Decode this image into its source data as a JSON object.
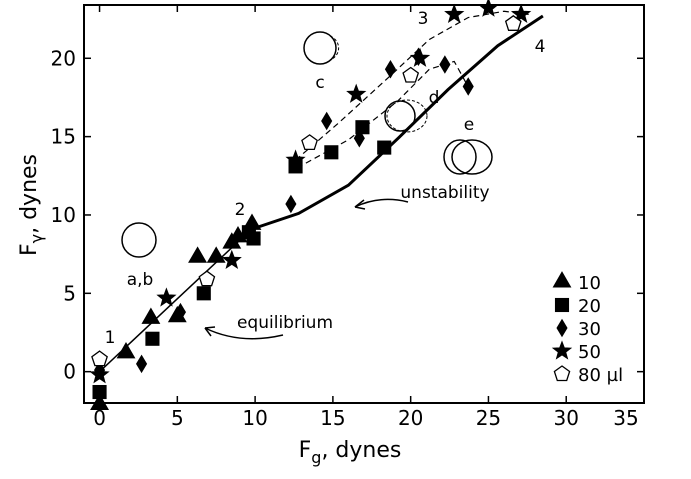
{
  "chart_data": {
    "type": "scatter",
    "x_label": "F",
    "x_label_sub": "g",
    "x_label_rest": ", dynes",
    "y_label": "F",
    "y_label_sub": "γ",
    "y_label_rest": ", dynes",
    "xlim": [
      -1,
      35
    ],
    "ylim": [
      -2,
      23.4
    ],
    "xticks": [
      0,
      5,
      10,
      15,
      20,
      25,
      30,
      35
    ],
    "yticks": [
      0,
      5,
      10,
      15,
      20
    ],
    "legend": "lower right",
    "series": [
      {
        "name": "10",
        "marker": "triangle",
        "color": "#000000",
        "filled": true,
        "x": [
          0,
          1.7,
          3.3,
          5.0,
          6.3,
          7.5,
          8.5,
          9.8,
          8.9
        ],
        "values": [
          -2.1,
          1.2,
          3.4,
          3.5,
          7.3,
          7.3,
          8.2,
          9.4,
          8.6
        ]
      },
      {
        "name": "20",
        "marker": "square",
        "color": "#000000",
        "filled": true,
        "x": [
          0,
          3.4,
          6.7,
          9.9,
          9.6,
          12.6,
          14.9,
          16.9,
          18.3
        ],
        "values": [
          -1.3,
          2.1,
          5.0,
          8.5,
          8.9,
          13.1,
          14.0,
          15.6,
          14.3
        ]
      },
      {
        "name": "30",
        "marker": "diamond",
        "color": "#000000",
        "filled": true,
        "x": [
          0,
          2.7,
          5.2,
          12.3,
          14.6,
          16.7,
          18.7,
          20.5,
          22.2,
          23.7
        ],
        "values": [
          0.1,
          0.5,
          3.8,
          10.7,
          16.0,
          14.9,
          19.3,
          20.1,
          19.6,
          18.2
        ]
      },
      {
        "name": "50",
        "marker": "star",
        "color": "#000000",
        "filled": true,
        "x": [
          0,
          4.3,
          8.5,
          12.6,
          16.5,
          20.6,
          22.8,
          25.0,
          27.1
        ],
        "values": [
          -0.2,
          4.7,
          7.1,
          13.5,
          17.7,
          20.0,
          22.8,
          23.2,
          22.8
        ]
      },
      {
        "name": "80 µl",
        "marker": "pentagon",
        "color": "#000000",
        "filled": false,
        "x": [
          0,
          6.9,
          13.5,
          20.0,
          26.6
        ],
        "values": [
          0.8,
          5.9,
          14.6,
          18.9,
          22.2
        ]
      }
    ],
    "curves": [
      {
        "x": [
          0,
          10.1
        ],
        "y": [
          0,
          9.4
        ],
        "dashed": false,
        "width": 1.5
      },
      {
        "x": [
          10.1,
          12.8,
          16.0,
          19.2,
          22.4,
          25.6,
          28.5
        ],
        "y": [
          9.2,
          10.1,
          11.9,
          14.9,
          18.0,
          20.8,
          22.7
        ],
        "dashed": false,
        "width": 3
      },
      {
        "x": [
          12.6,
          15.4,
          18.6,
          21.2,
          23.7,
          26.0,
          27.6
        ],
        "y": [
          13.5,
          15.9,
          18.8,
          21.2,
          22.6,
          23.0,
          22.8
        ],
        "dashed": true,
        "width": 1.2
      },
      {
        "x": [
          12.7,
          16.0,
          19.2,
          21.2,
          22.8,
          23.8
        ],
        "y": [
          13.0,
          14.8,
          17.3,
          19.3,
          19.8,
          18.0
        ],
        "dashed": true,
        "width": 1.2
      }
    ],
    "annotations": [
      "1",
      "2",
      "3",
      "4",
      "a,b",
      "c",
      "d",
      "e",
      "equilibrium",
      "unstability"
    ]
  }
}
